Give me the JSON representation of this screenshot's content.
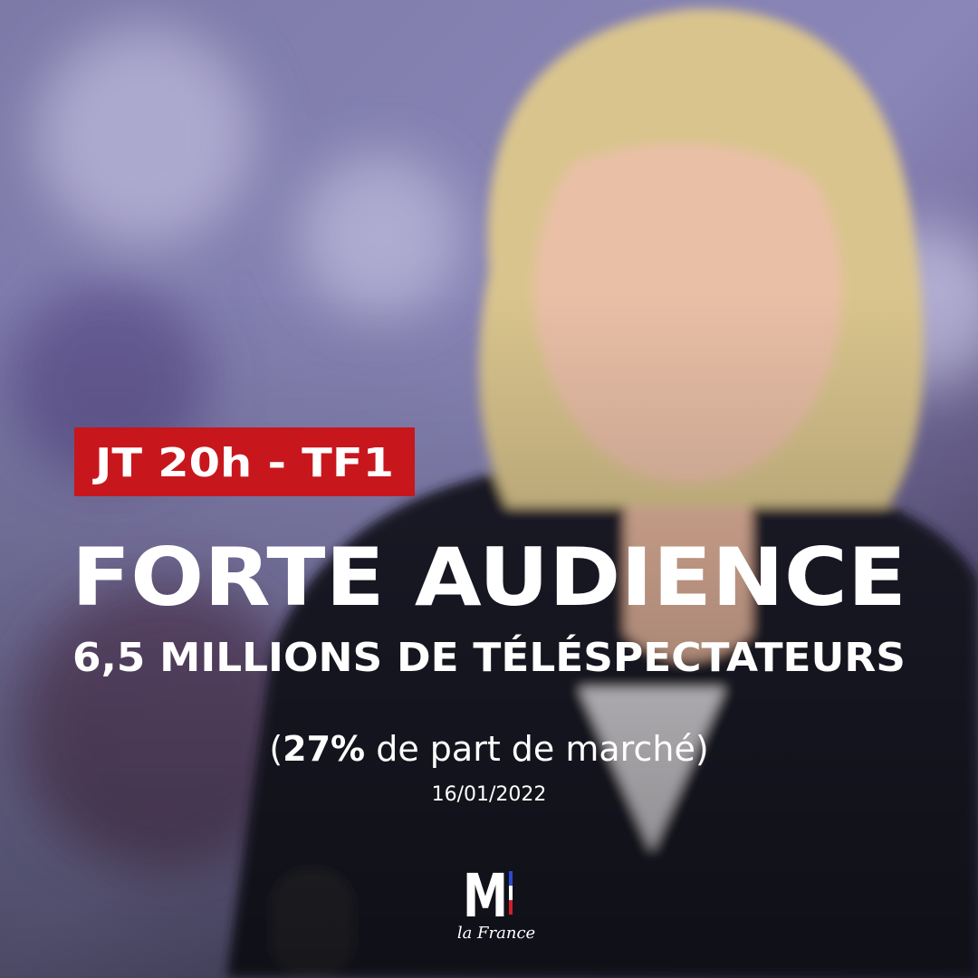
{
  "badge": "JT 20h - TF1",
  "headline": "FORTE AUDIENCE",
  "subheadline": "6,5 MILLIONS DE TÉLÉSPECTATEURS",
  "share": [
    "(",
    "27%",
    " de part de marché)"
  ],
  "date": "16/01/2022",
  "logo": {
    "letter": "M",
    "tagline": "la France"
  }
}
